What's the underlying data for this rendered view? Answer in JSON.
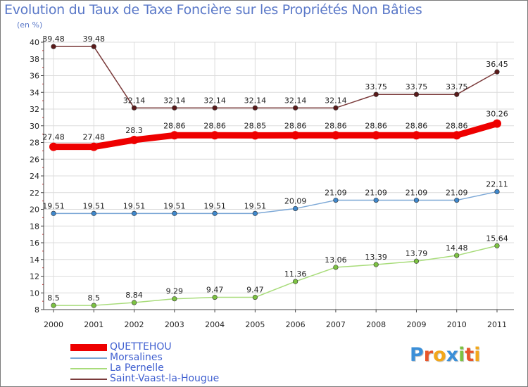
{
  "title": "Evolution du Taux de Taxe Foncière sur les Propriétés Non Bâties",
  "subtitle": "(en %)",
  "logo": {
    "text": "Proxiti",
    "letters": [
      "P",
      "r",
      "o",
      "x",
      "i",
      "t",
      "i"
    ],
    "colors": [
      "#3b8fd8",
      "#e8552a",
      "#f2a71b",
      "#3b8fd8",
      "#7cc242",
      "#e8552a",
      "#f2a71b"
    ]
  },
  "chart_data": {
    "type": "line",
    "title": "Evolution du Taux de Taxe Foncière sur les Propriétés Non Bâties",
    "ylabel": "(en %)",
    "xlabel": "",
    "x": [
      "2000",
      "2001",
      "2002",
      "2003",
      "2004",
      "2005",
      "2006",
      "2007",
      "2008",
      "2009",
      "2010",
      "2011"
    ],
    "ylim": [
      8,
      40
    ],
    "yticks": [
      8,
      10,
      12,
      14,
      16,
      18,
      20,
      22,
      24,
      26,
      28,
      30,
      32,
      34,
      36,
      38,
      40
    ],
    "grid": true,
    "legend_position": "bottom-left",
    "series": [
      {
        "name": "Saint-Vaast-la-Hougue",
        "color": "#7a3a3a",
        "marker": "#5a1a1a",
        "emphasis": false,
        "values": [
          39.48,
          39.48,
          32.14,
          32.14,
          32.14,
          32.14,
          32.14,
          32.14,
          33.75,
          33.75,
          33.75,
          36.45
        ],
        "labels": [
          "39.48",
          "39.48",
          "32.14",
          "32.14",
          "32.14",
          "32.14",
          "32.14",
          "32.14",
          "33.75",
          "33.75",
          "33.75",
          "36.45"
        ]
      },
      {
        "name": "QUETTEHOU",
        "color": "#ee0000",
        "marker": "#ee0000",
        "emphasis": true,
        "values": [
          27.48,
          27.48,
          28.3,
          28.86,
          28.86,
          28.85,
          28.86,
          28.86,
          28.86,
          28.86,
          28.86,
          30.26
        ],
        "labels": [
          "27.48",
          "27.48",
          "28.3",
          "28.86",
          "28.86",
          "28.85",
          "28.86",
          "28.86",
          "28.86",
          "28.86",
          "28.86",
          "30.26"
        ]
      },
      {
        "name": "Morsalines",
        "color": "#7ba7d6",
        "marker": "#3f88cc",
        "emphasis": false,
        "values": [
          19.51,
          19.51,
          19.51,
          19.51,
          19.51,
          19.51,
          20.09,
          21.09,
          21.09,
          21.09,
          21.09,
          22.11
        ],
        "labels": [
          "19.51",
          "19.51",
          "19.51",
          "19.51",
          "19.51",
          "19.51",
          "20.09",
          "21.09",
          "21.09",
          "21.09",
          "21.09",
          "22.11"
        ]
      },
      {
        "name": "La Pernelle",
        "color": "#a8dc7a",
        "marker": "#7cc242",
        "emphasis": false,
        "values": [
          8.5,
          8.5,
          8.84,
          9.29,
          9.47,
          9.47,
          11.36,
          13.06,
          13.39,
          13.79,
          14.48,
          15.64
        ],
        "labels": [
          "8.5",
          "8.5",
          "8.84",
          "9.29",
          "9.47",
          "9.47",
          "11.36",
          "13.06",
          "13.39",
          "13.79",
          "14.48",
          "15.64"
        ]
      }
    ],
    "legend_order": [
      "QUETTEHOU",
      "Morsalines",
      "La Pernelle",
      "Saint-Vaast-la-Hougue"
    ]
  }
}
